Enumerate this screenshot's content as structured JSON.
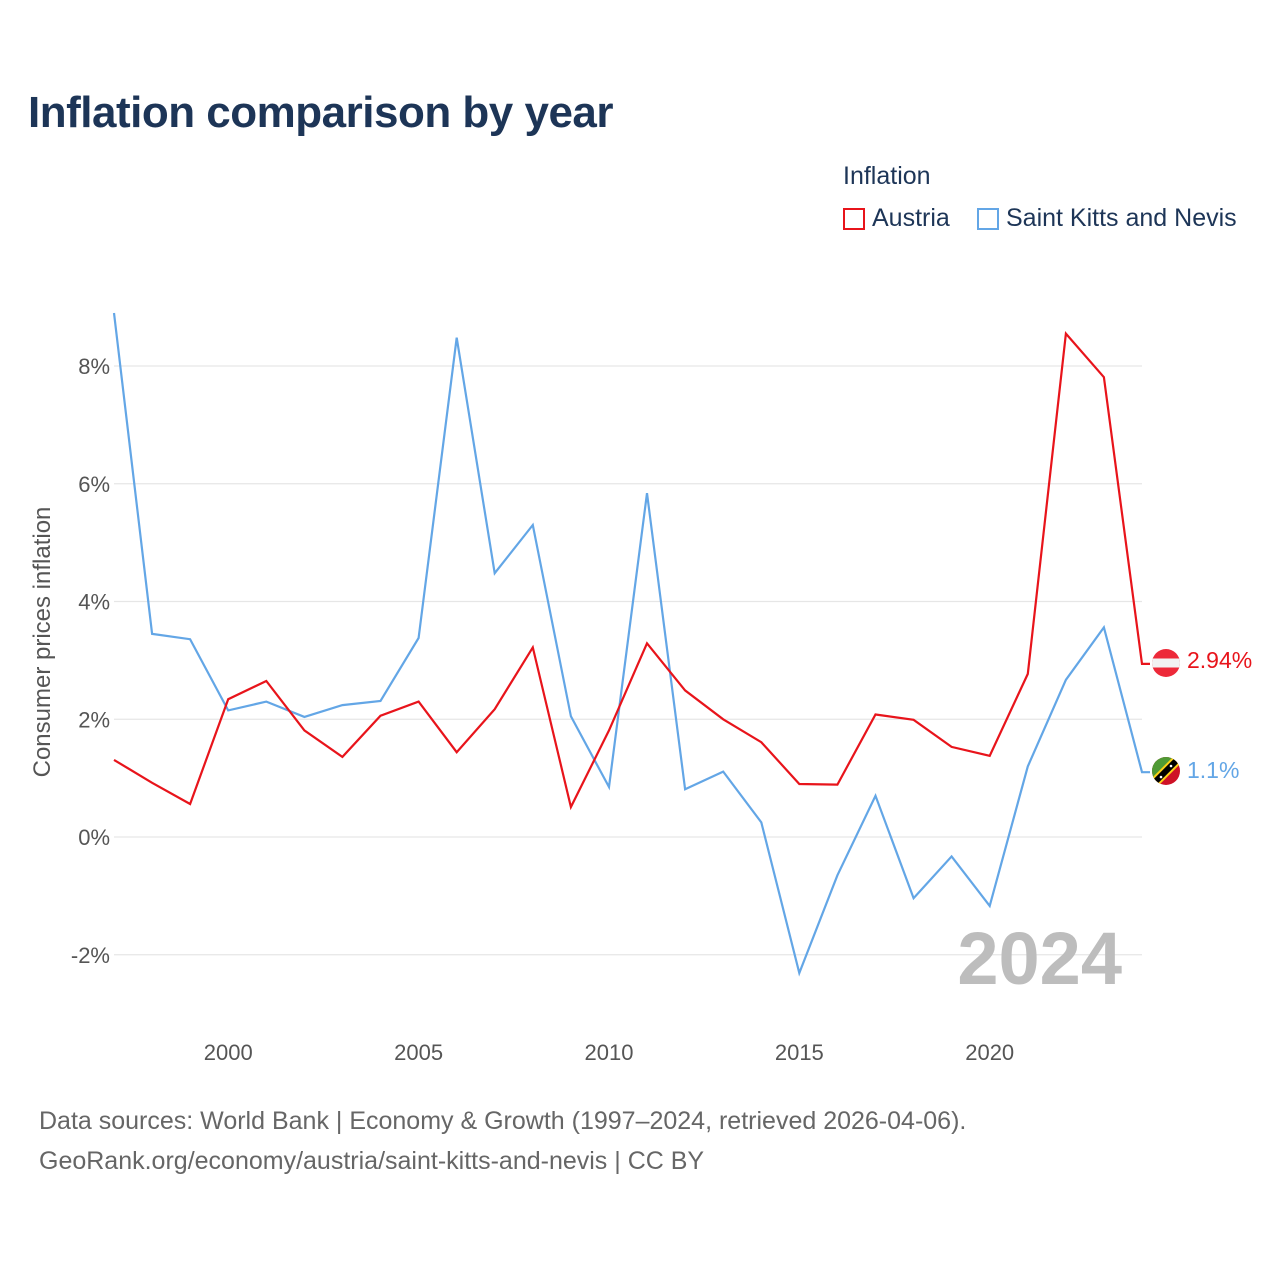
{
  "title": "Inflation comparison by year",
  "legend": {
    "title": "Inflation",
    "items": [
      {
        "label": "Austria",
        "color": "#e8141b"
      },
      {
        "label": "Saint Kitts and Nevis",
        "color": "#63a6e6"
      }
    ]
  },
  "chart_data": {
    "type": "line",
    "title": "Inflation comparison by year",
    "ylabel": "Consumer prices inflation",
    "xlabel": "",
    "x": [
      1997,
      1998,
      1999,
      2000,
      2001,
      2002,
      2003,
      2004,
      2005,
      2006,
      2007,
      2008,
      2009,
      2010,
      2011,
      2012,
      2013,
      2014,
      2015,
      2016,
      2017,
      2018,
      2019,
      2020,
      2021,
      2022,
      2023,
      2024
    ],
    "series": [
      {
        "name": "Austria",
        "color": "#e8141b",
        "values": [
          1.31,
          0.92,
          0.56,
          2.34,
          2.65,
          1.81,
          1.36,
          2.06,
          2.3,
          1.44,
          2.17,
          3.22,
          0.51,
          1.81,
          3.29,
          2.49,
          2.0,
          1.61,
          0.9,
          0.89,
          2.08,
          1.99,
          1.53,
          1.38,
          2.77,
          8.55,
          7.81,
          2.94
        ]
      },
      {
        "name": "Saint Kitts and Nevis",
        "color": "#63a6e6",
        "values": [
          8.9,
          3.45,
          3.36,
          2.15,
          2.3,
          2.04,
          2.24,
          2.31,
          3.38,
          8.48,
          4.48,
          5.3,
          2.05,
          0.85,
          5.84,
          0.81,
          1.11,
          0.25,
          -2.31,
          -0.65,
          0.7,
          -1.04,
          -0.33,
          -1.17,
          1.2,
          2.67,
          3.56,
          1.1
        ]
      }
    ],
    "xticks": [
      2000,
      2005,
      2010,
      2015,
      2020
    ],
    "yticks": [
      -2,
      0,
      2,
      4,
      6,
      8
    ],
    "ytick_labels": [
      "-2%",
      "0%",
      "2%",
      "4%",
      "6%",
      "8%"
    ],
    "xlim": [
      1997,
      2024
    ],
    "ylim": [
      -3,
      9
    ],
    "current_year": "2024",
    "end_labels": [
      {
        "series": "Austria",
        "text": "2.94%"
      },
      {
        "series": "Saint Kitts and Nevis",
        "text": "1.1%"
      }
    ]
  },
  "source": {
    "line1": "Data sources: World Bank | Economy & Growth (1997–2024, retrieved 2026-04-06).",
    "line2": "GeoRank.org/economy/austria/saint-kitts-and-nevis | CC BY"
  }
}
